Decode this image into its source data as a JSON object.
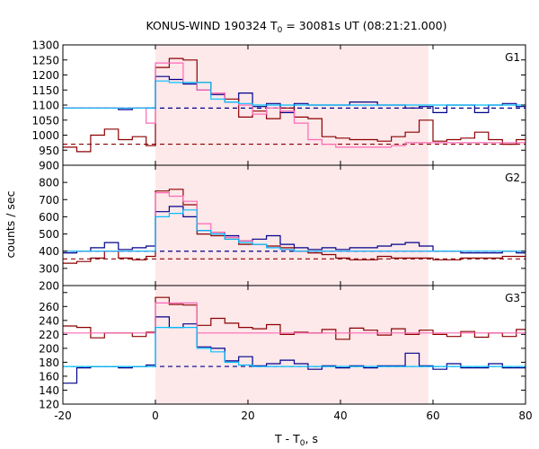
{
  "chart_data": [
    {
      "panel": "G1",
      "type": "line",
      "title": "KONUS-WIND 190324 T",
      "title_sub": "0",
      "title_rest": " = 30081s UT (08:21:21.000)",
      "xlabel": "T - T",
      "xlabel_sub": "0",
      "xlabel_rest": ", s",
      "ylabel": "counts / sec",
      "xlim": [
        -20,
        80
      ],
      "ylim": [
        900,
        1300
      ],
      "xticks": [
        -20,
        0,
        20,
        40,
        60,
        80
      ],
      "yticks": [
        900,
        950,
        1000,
        1050,
        1100,
        1150,
        1200,
        1250,
        1300
      ],
      "shaded_interval": [
        0,
        59
      ],
      "bin_edges": [
        -20,
        -17,
        -14,
        -11,
        -8,
        -5,
        -2,
        0,
        3,
        6,
        9,
        12,
        15,
        18,
        21,
        24,
        27,
        30,
        33,
        36,
        39,
        42,
        45,
        48,
        51,
        54,
        57,
        60,
        63,
        66,
        69,
        72,
        75,
        78,
        80
      ],
      "series": [
        {
          "color": "#00008b",
          "values": [
            1090,
            1090,
            1090,
            1090,
            1085,
            1090,
            1090,
            1195,
            1185,
            1170,
            1150,
            1135,
            1110,
            1140,
            1095,
            1105,
            1075,
            1105,
            1100,
            1100,
            1100,
            1110,
            1110,
            1100,
            1100,
            1090,
            1095,
            1075,
            1100,
            1100,
            1075,
            1100,
            1105,
            1095
          ]
        },
        {
          "color": "#8b0000",
          "values": [
            960,
            945,
            1000,
            1020,
            985,
            995,
            965,
            1225,
            1255,
            1250,
            1175,
            1140,
            1120,
            1060,
            1080,
            1055,
            1090,
            1060,
            1055,
            995,
            990,
            985,
            985,
            980,
            995,
            1010,
            1050,
            980,
            985,
            990,
            1010,
            985,
            970,
            985
          ]
        },
        {
          "color": "#ff69b4",
          "values": [
            1090,
            1090,
            1090,
            1090,
            1090,
            1090,
            1040,
            1240,
            1240,
            1175,
            1150,
            1140,
            1110,
            1100,
            1070,
            1090,
            1080,
            1040,
            985,
            970,
            960,
            960,
            960,
            960,
            965,
            975,
            975,
            975,
            975,
            975,
            975,
            975,
            975,
            975
          ]
        },
        {
          "color": "#00bfff",
          "values": [
            1090,
            1090,
            1090,
            1090,
            1090,
            1090,
            1090,
            1180,
            1175,
            1175,
            1175,
            1120,
            1110,
            1105,
            1100,
            1100,
            1100,
            1100,
            1100,
            1100,
            1100,
            1100,
            1100,
            1100,
            1100,
            1100,
            1100,
            1100,
            1100,
            1100,
            1100,
            1100,
            1100,
            1100
          ]
        }
      ],
      "background_levels": [
        {
          "color": "#00008b",
          "value": 1090
        },
        {
          "color": "#8b0000",
          "value": 970
        }
      ]
    },
    {
      "panel": "G2",
      "type": "line",
      "xlim": [
        -20,
        80
      ],
      "ylim": [
        200,
        900
      ],
      "yticks": [
        200,
        300,
        400,
        500,
        600,
        700,
        800,
        900
      ],
      "shaded_interval": [
        0,
        59
      ],
      "bin_edges": [
        -20,
        -17,
        -14,
        -11,
        -8,
        -5,
        -2,
        0,
        3,
        6,
        9,
        12,
        15,
        18,
        21,
        24,
        27,
        30,
        33,
        36,
        39,
        42,
        45,
        48,
        51,
        54,
        57,
        60,
        63,
        66,
        69,
        72,
        75,
        78,
        80
      ],
      "series": [
        {
          "color": "#00008b",
          "values": [
            390,
            400,
            420,
            450,
            410,
            420,
            430,
            630,
            660,
            600,
            520,
            510,
            490,
            460,
            470,
            490,
            440,
            420,
            410,
            420,
            410,
            420,
            420,
            430,
            440,
            450,
            430,
            400,
            400,
            390,
            390,
            390,
            400,
            390
          ]
        },
        {
          "color": "#8b0000",
          "values": [
            330,
            340,
            360,
            400,
            360,
            350,
            370,
            750,
            760,
            670,
            500,
            490,
            470,
            440,
            440,
            430,
            420,
            400,
            390,
            380,
            360,
            350,
            350,
            370,
            360,
            360,
            360,
            350,
            350,
            360,
            360,
            360,
            370,
            370
          ]
        },
        {
          "color": "#ff69b4",
          "values": [
            400,
            400,
            400,
            400,
            400,
            400,
            400,
            740,
            720,
            690,
            560,
            510,
            480,
            460,
            440,
            420,
            410,
            400,
            400,
            400,
            400,
            400,
            400,
            400,
            400,
            400,
            400,
            400,
            400,
            400,
            400,
            400,
            400,
            400
          ]
        },
        {
          "color": "#00bfff",
          "values": [
            400,
            400,
            400,
            400,
            400,
            400,
            400,
            600,
            620,
            640,
            520,
            500,
            470,
            450,
            440,
            420,
            410,
            400,
            400,
            400,
            400,
            400,
            400,
            400,
            400,
            400,
            400,
            400,
            400,
            400,
            400,
            400,
            400,
            400
          ]
        }
      ],
      "background_levels": [
        {
          "color": "#00008b",
          "value": 400
        },
        {
          "color": "#8b0000",
          "value": 355
        }
      ]
    },
    {
      "panel": "G3",
      "type": "line",
      "xlim": [
        -20,
        80
      ],
      "ylim": [
        120,
        290
      ],
      "yticks": [
        120,
        140,
        160,
        180,
        200,
        220,
        240,
        260,
        280
      ],
      "shaded_interval": [
        0,
        59
      ],
      "bin_edges": [
        -20,
        -17,
        -14,
        -11,
        -8,
        -5,
        -2,
        0,
        3,
        6,
        9,
        12,
        15,
        18,
        21,
        24,
        27,
        30,
        33,
        36,
        39,
        42,
        45,
        48,
        51,
        54,
        57,
        60,
        63,
        66,
        69,
        72,
        75,
        78,
        80
      ],
      "series": [
        {
          "color": "#00008b",
          "values": [
            150,
            172,
            174,
            174,
            172,
            174,
            176,
            245,
            230,
            235,
            202,
            200,
            182,
            188,
            175,
            178,
            183,
            178,
            170,
            175,
            172,
            175,
            172,
            175,
            175,
            193,
            175,
            170,
            178,
            172,
            172,
            178,
            172,
            172
          ]
        },
        {
          "color": "#8b0000",
          "values": [
            232,
            230,
            215,
            222,
            222,
            217,
            223,
            273,
            263,
            262,
            233,
            243,
            236,
            230,
            228,
            234,
            220,
            223,
            222,
            227,
            213,
            229,
            226,
            219,
            228,
            220,
            226,
            220,
            217,
            224,
            216,
            222,
            217,
            227
          ]
        },
        {
          "color": "#ff69b4",
          "values": [
            222,
            222,
            222,
            222,
            222,
            222,
            222,
            265,
            265,
            265,
            222,
            222,
            222,
            222,
            222,
            222,
            222,
            222,
            222,
            222,
            222,
            222,
            222,
            222,
            222,
            222,
            222,
            222,
            222,
            222,
            222,
            222,
            222,
            222
          ]
        },
        {
          "color": "#00bfff",
          "values": [
            174,
            174,
            174,
            174,
            174,
            174,
            174,
            230,
            230,
            230,
            200,
            195,
            180,
            176,
            174,
            174,
            174,
            174,
            174,
            174,
            174,
            174,
            174,
            174,
            174,
            174,
            174,
            174,
            174,
            174,
            174,
            174,
            174,
            174
          ]
        }
      ],
      "background_levels": [
        {
          "color": "#00008b",
          "value": 174
        }
      ]
    }
  ],
  "panel_labels": [
    "G1",
    "G2",
    "G3"
  ],
  "colors": {
    "shade": "#fde8ea",
    "frame": "#000000"
  }
}
